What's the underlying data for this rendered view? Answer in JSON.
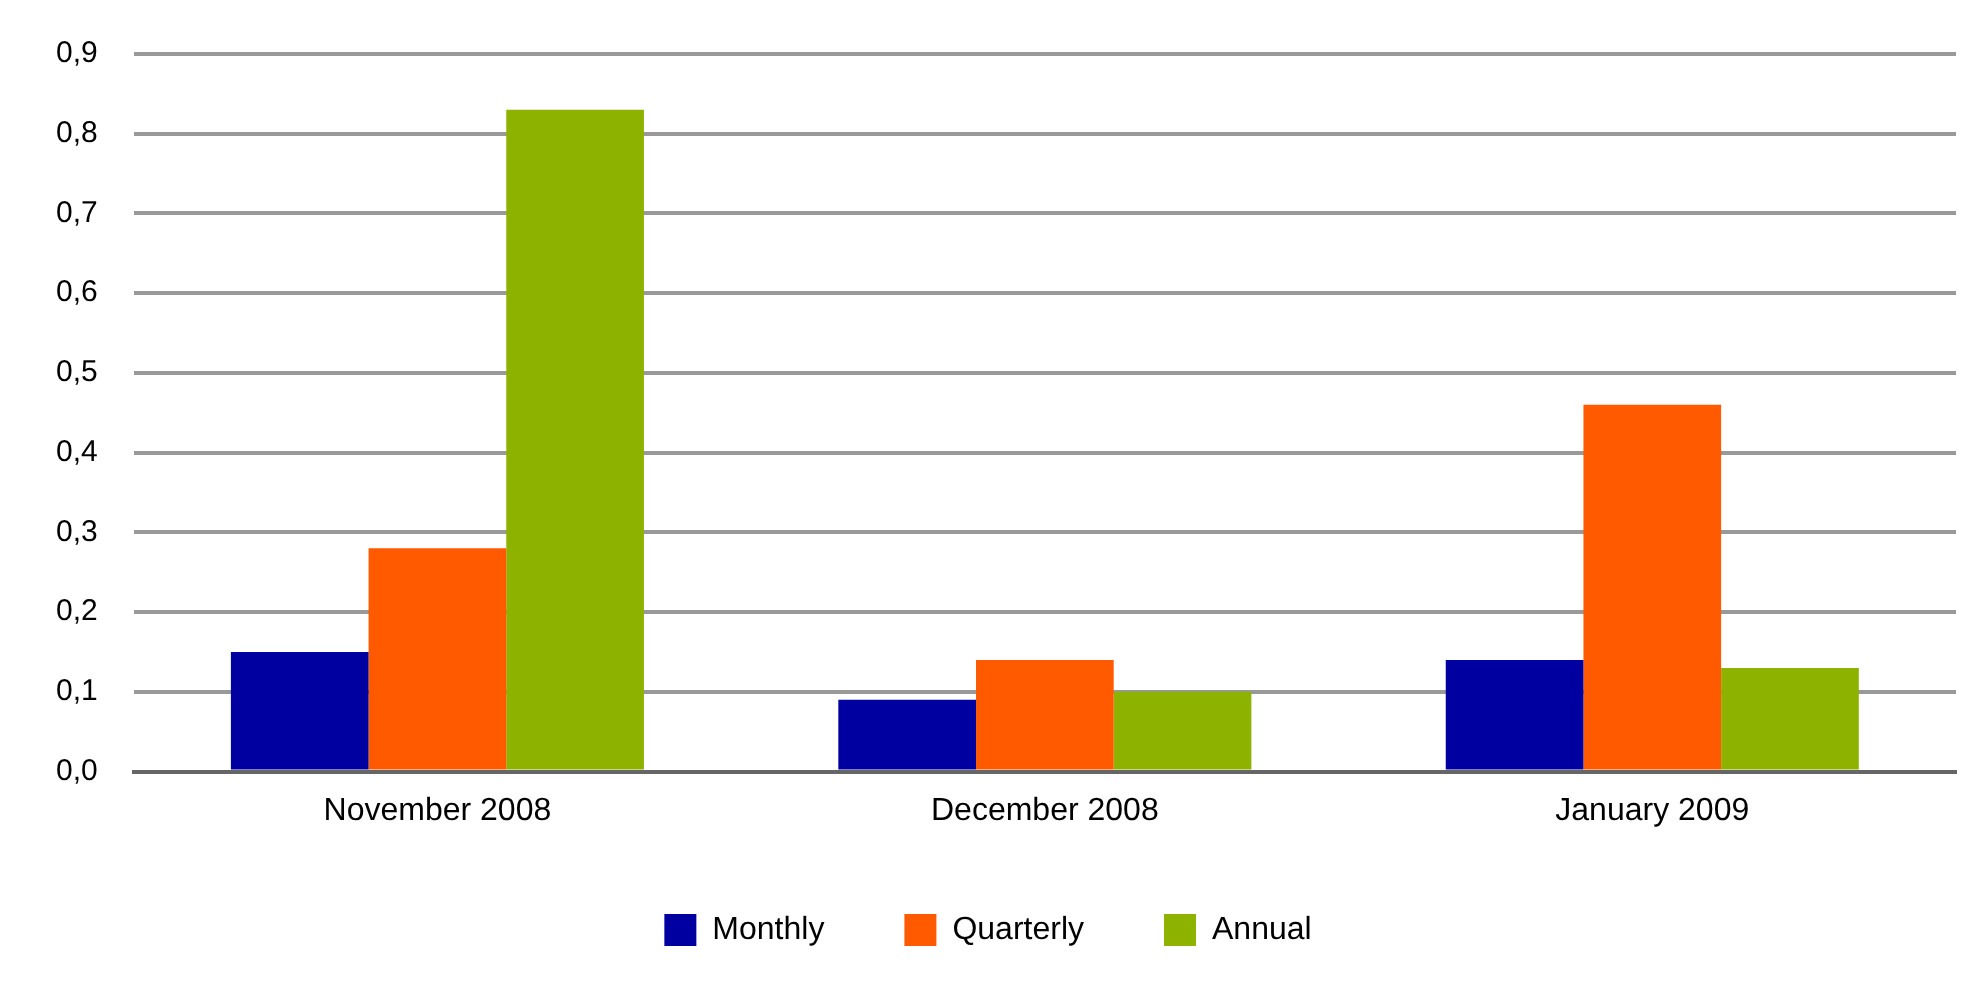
{
  "chart_data": {
    "type": "bar",
    "categories": [
      "November 2008",
      "December 2008",
      "January 2009"
    ],
    "series": [
      {
        "name": "Monthly",
        "color": "#0000a0",
        "values": [
          0.15,
          0.09,
          0.14
        ]
      },
      {
        "name": "Quarterly",
        "color": "#ff5a00",
        "values": [
          0.28,
          0.14,
          0.46
        ]
      },
      {
        "name": "Annual",
        "color": "#8db300",
        "values": [
          0.83,
          0.1,
          0.13
        ]
      }
    ],
    "ylim": [
      0,
      0.9
    ],
    "yticks": [
      {
        "value": 0,
        "label": "0,0"
      },
      {
        "value": 0.1,
        "label": "0,1"
      },
      {
        "value": 0.2,
        "label": "0,2"
      },
      {
        "value": 0.3,
        "label": "0,3"
      },
      {
        "value": 0.4,
        "label": "0,4"
      },
      {
        "value": 0.5,
        "label": "0,5"
      },
      {
        "value": 0.6,
        "label": "0,6"
      },
      {
        "value": 0.7,
        "label": "0,7"
      },
      {
        "value": 0.8,
        "label": "0,8"
      },
      {
        "value": 0.9,
        "label": "0,9"
      }
    ],
    "grid": "y",
    "legend": "bottom"
  }
}
